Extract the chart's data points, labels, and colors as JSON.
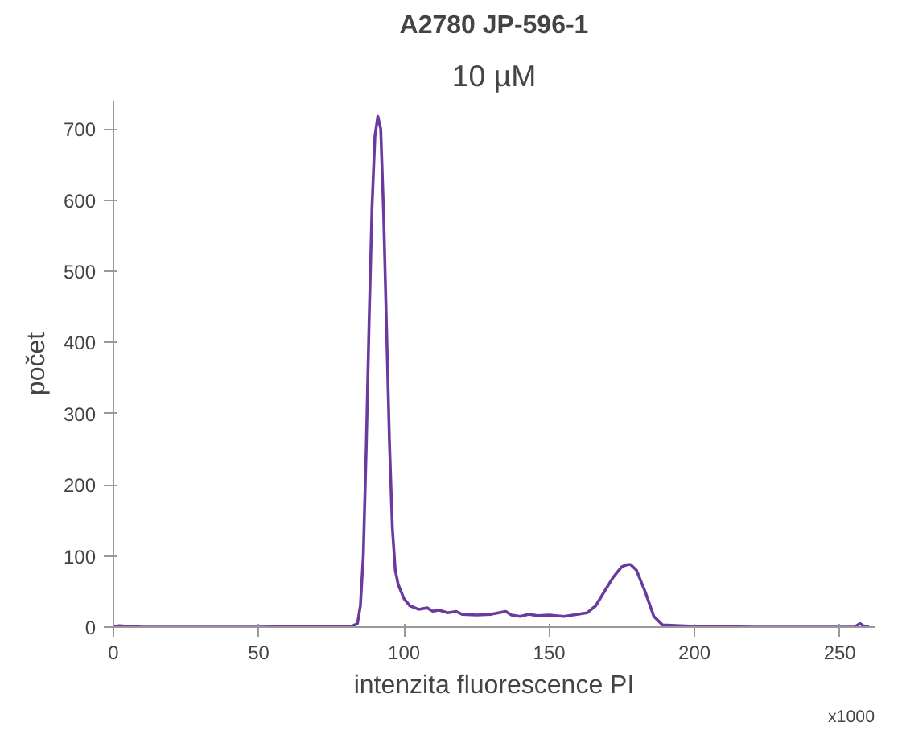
{
  "chart_data": {
    "type": "line",
    "title": "A2780 JP-596-1",
    "subtitle": "10 µM",
    "xlabel": "intenzita fluorescence PI",
    "ylabel": "počet",
    "annotations": [
      "x1000"
    ],
    "x": [
      0,
      2,
      5,
      10,
      30,
      50,
      70,
      80,
      82,
      84,
      85,
      86,
      87,
      88,
      89,
      90,
      91,
      92,
      93,
      94,
      95,
      96,
      97,
      98,
      100,
      102,
      105,
      108,
      110,
      112,
      115,
      118,
      120,
      125,
      130,
      135,
      137,
      140,
      143,
      146,
      150,
      155,
      160,
      163,
      166,
      169,
      172,
      175,
      177,
      178,
      180,
      183,
      186,
      189,
      195,
      200,
      220,
      240,
      255,
      257,
      258,
      260
    ],
    "values": [
      0,
      2,
      1,
      0,
      0,
      0,
      1,
      1,
      1,
      5,
      30,
      100,
      250,
      430,
      590,
      690,
      718,
      700,
      580,
      420,
      260,
      140,
      80,
      60,
      40,
      30,
      25,
      27,
      22,
      24,
      20,
      22,
      18,
      17,
      18,
      22,
      17,
      15,
      18,
      16,
      17,
      15,
      18,
      20,
      30,
      50,
      70,
      85,
      88,
      88,
      80,
      50,
      15,
      3,
      2,
      1,
      0,
      0,
      0,
      5,
      2,
      0
    ],
    "color": "#6a3aa0",
    "line_style": "solid",
    "marker": "none",
    "xlim": [
      0,
      262
    ],
    "ylim": [
      0,
      740
    ],
    "xticks": [
      0,
      50,
      100,
      150,
      200,
      250
    ],
    "yticks": [
      0,
      100,
      200,
      300,
      400,
      500,
      600,
      700
    ],
    "grid": false
  }
}
